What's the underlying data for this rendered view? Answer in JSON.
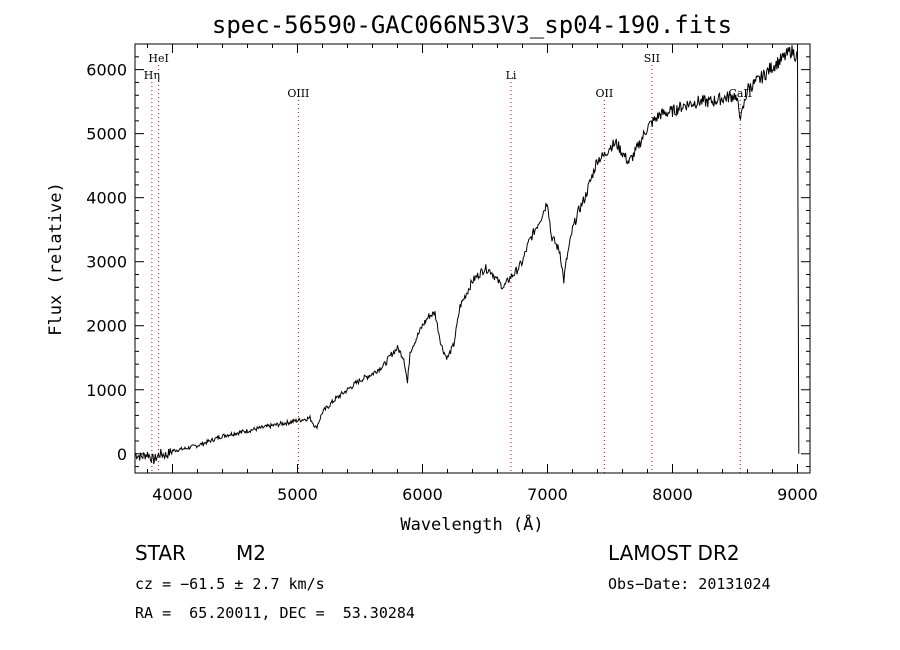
{
  "chart_data": {
    "type": "line",
    "title": "spec-56590-GAC066N53V3_sp04-190.fits",
    "xlabel": "Wavelength (Å)",
    "ylabel": "Flux (relative)",
    "xlim": [
      3700,
      9100
    ],
    "ylim": [
      -300,
      6400
    ],
    "x_ticks": [
      4000,
      5000,
      6000,
      7000,
      8000,
      9000
    ],
    "y_ticks": [
      0,
      1000,
      2000,
      3000,
      4000,
      5000,
      6000
    ],
    "grid": false,
    "legend": "none",
    "line_color": "#000000",
    "marker_color": "#cc0000",
    "spectral_lines": [
      {
        "label": "HeI",
        "x": 3889,
        "row": 1
      },
      {
        "label": "Hη",
        "x": 3835,
        "row": 2
      },
      {
        "label": "OIII",
        "x": 5007,
        "row": 3
      },
      {
        "label": "Li",
        "x": 6708,
        "row": 2
      },
      {
        "label": "OII",
        "x": 7455,
        "row": 3
      },
      {
        "label": "SII",
        "x": 7835,
        "row": 1
      },
      {
        "label": "CaII",
        "x": 8542,
        "row": 3
      }
    ],
    "series": [
      {
        "x": [
          3700,
          3750,
          3800,
          3850,
          3900,
          3950,
          4000,
          4100,
          4200,
          4300,
          4400,
          4500,
          4600,
          4700,
          4800,
          4900,
          5000,
          5050,
          5100,
          5150,
          5200,
          5300,
          5400,
          5500,
          5600,
          5700,
          5750,
          5800,
          5850,
          5880,
          5900,
          5950,
          6000,
          6050,
          6100,
          6150,
          6180,
          6200,
          6250,
          6300,
          6350,
          6400,
          6500,
          6550,
          6600,
          6650,
          6700,
          6750,
          6800,
          6850,
          6900,
          6950,
          7000,
          7030,
          7060,
          7100,
          7130,
          7150,
          7200,
          7250,
          7300,
          7350,
          7400,
          7450,
          7500,
          7550,
          7600,
          7650,
          7700,
          7750,
          7800,
          7850,
          7900,
          8000,
          8100,
          8200,
          8300,
          8400,
          8500,
          8550,
          8600,
          8700,
          8800,
          8900,
          8950,
          9000,
          9010
        ],
        "y": [
          0,
          -50,
          0,
          -100,
          0,
          -20,
          50,
          80,
          130,
          200,
          280,
          320,
          360,
          400,
          440,
          480,
          520,
          540,
          560,
          400,
          650,
          850,
          1000,
          1150,
          1250,
          1400,
          1550,
          1650,
          1500,
          1100,
          1600,
          1800,
          2000,
          2150,
          2200,
          1700,
          1550,
          1500,
          1700,
          2300,
          2500,
          2700,
          2900,
          2850,
          2700,
          2600,
          2750,
          2850,
          3000,
          3300,
          3500,
          3700,
          3950,
          3400,
          3300,
          3150,
          2700,
          3000,
          3500,
          3800,
          4000,
          4300,
          4600,
          4650,
          4800,
          4850,
          4700,
          4550,
          4700,
          4900,
          5100,
          5200,
          5300,
          5350,
          5450,
          5500,
          5500,
          5550,
          5600,
          5250,
          5700,
          5850,
          6050,
          6200,
          6300,
          6200,
          0
        ]
      }
    ]
  },
  "info": {
    "object_type": "STAR",
    "subclass": "M2",
    "survey": "LAMOST DR2",
    "cz": "cz = −61.5 ± 2.7 km/s",
    "obs_date": "Obs−Date: 20131024",
    "coords": "RA =  65.20011, DEC =  53.30284"
  }
}
